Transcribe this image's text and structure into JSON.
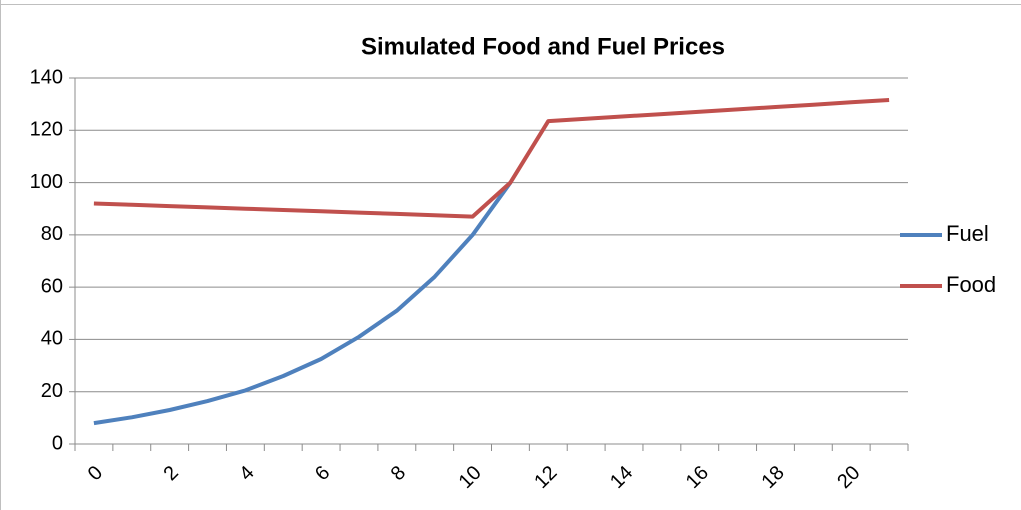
{
  "chart_data": {
    "type": "line",
    "title": "Simulated Food and Fuel Prices",
    "categories": [
      0,
      null,
      2,
      null,
      4,
      null,
      6,
      null,
      8,
      null,
      10,
      null,
      12,
      null,
      14,
      null,
      16,
      null,
      18,
      null,
      20,
      null
    ],
    "series": [
      {
        "name": "Fuel",
        "color": "#4f81bd",
        "values": [
          8,
          10.2,
          13,
          16.4,
          20.5,
          26,
          32.5,
          41,
          51,
          64,
          80,
          100,
          null,
          null,
          null,
          null,
          null,
          null,
          null,
          null,
          null,
          null
        ]
      },
      {
        "name": "Food",
        "color": "#c0504d",
        "values": [
          92,
          91.5,
          91,
          90.5,
          90,
          89.5,
          89,
          88.5,
          88,
          87.5,
          87,
          100,
          123.5,
          124.4,
          125.3,
          126.2,
          127.1,
          128,
          128.9,
          129.8,
          130.7,
          131.6
        ]
      }
    ],
    "ylim": [
      0,
      140
    ],
    "yticks": [
      0,
      20,
      40,
      60,
      80,
      100,
      120,
      140
    ],
    "grid": true,
    "legend": "right"
  }
}
